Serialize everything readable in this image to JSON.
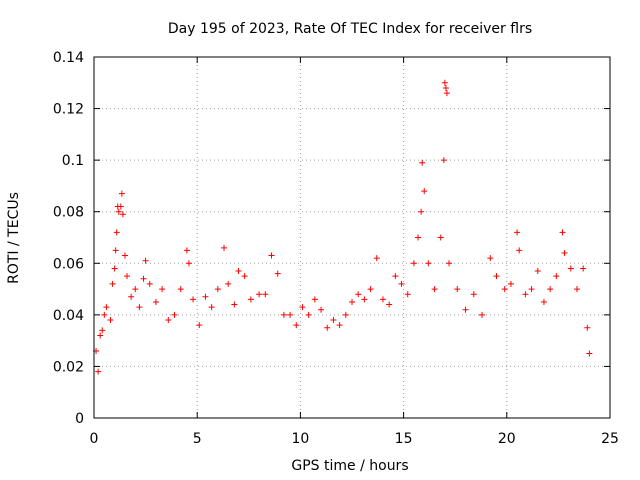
{
  "chart_data": {
    "type": "scatter",
    "title": "Day 195 of 2023, Rate Of TEC Index for receiver flrs",
    "xlabel": "GPS time / hours",
    "ylabel": "ROTI / TECUs",
    "xlim": [
      0,
      25
    ],
    "ylim": [
      0,
      0.14
    ],
    "xticks": [
      0,
      5,
      10,
      15,
      20,
      25
    ],
    "xtick_labels": [
      "0",
      "5",
      "10",
      "15",
      "20",
      "25"
    ],
    "yticks": [
      0,
      0.02,
      0.04,
      0.06,
      0.08,
      0.1,
      0.12,
      0.14
    ],
    "ytick_labels": [
      "0",
      "0.02",
      "0.04",
      "0.06",
      "0.08",
      "0.1",
      "0.12",
      "0.14"
    ],
    "grid": true,
    "marker": "+",
    "color": "#ff0000",
    "series": [
      {
        "name": "ROTI",
        "points": [
          [
            0.1,
            0.026
          ],
          [
            0.2,
            0.018
          ],
          [
            0.3,
            0.032
          ],
          [
            0.4,
            0.034
          ],
          [
            0.5,
            0.04
          ],
          [
            0.6,
            0.043
          ],
          [
            0.8,
            0.038
          ],
          [
            0.9,
            0.052
          ],
          [
            1.0,
            0.058
          ],
          [
            1.05,
            0.065
          ],
          [
            1.1,
            0.072
          ],
          [
            1.15,
            0.082
          ],
          [
            1.2,
            0.08
          ],
          [
            1.3,
            0.082
          ],
          [
            1.35,
            0.087
          ],
          [
            1.4,
            0.079
          ],
          [
            1.5,
            0.063
          ],
          [
            1.6,
            0.055
          ],
          [
            1.8,
            0.047
          ],
          [
            2.0,
            0.05
          ],
          [
            2.2,
            0.043
          ],
          [
            2.4,
            0.054
          ],
          [
            2.5,
            0.061
          ],
          [
            2.7,
            0.052
          ],
          [
            3.0,
            0.045
          ],
          [
            3.3,
            0.05
          ],
          [
            3.6,
            0.038
          ],
          [
            3.9,
            0.04
          ],
          [
            4.2,
            0.05
          ],
          [
            4.5,
            0.065
          ],
          [
            4.6,
            0.06
          ],
          [
            4.8,
            0.046
          ],
          [
            5.1,
            0.036
          ],
          [
            5.4,
            0.047
          ],
          [
            5.7,
            0.043
          ],
          [
            6.0,
            0.05
          ],
          [
            6.3,
            0.066
          ],
          [
            6.5,
            0.052
          ],
          [
            6.8,
            0.044
          ],
          [
            7.0,
            0.057
          ],
          [
            7.3,
            0.055
          ],
          [
            7.6,
            0.046
          ],
          [
            8.0,
            0.048
          ],
          [
            8.3,
            0.048
          ],
          [
            8.6,
            0.063
          ],
          [
            8.9,
            0.056
          ],
          [
            9.2,
            0.04
          ],
          [
            9.5,
            0.04
          ],
          [
            9.8,
            0.036
          ],
          [
            10.1,
            0.043
          ],
          [
            10.4,
            0.04
          ],
          [
            10.7,
            0.046
          ],
          [
            11.0,
            0.042
          ],
          [
            11.3,
            0.035
          ],
          [
            11.6,
            0.038
          ],
          [
            11.9,
            0.036
          ],
          [
            12.2,
            0.04
          ],
          [
            12.5,
            0.045
          ],
          [
            12.8,
            0.048
          ],
          [
            13.1,
            0.046
          ],
          [
            13.4,
            0.05
          ],
          [
            13.7,
            0.062
          ],
          [
            14.0,
            0.046
          ],
          [
            14.3,
            0.044
          ],
          [
            14.6,
            0.055
          ],
          [
            14.9,
            0.052
          ],
          [
            15.2,
            0.048
          ],
          [
            15.5,
            0.06
          ],
          [
            15.7,
            0.07
          ],
          [
            15.85,
            0.08
          ],
          [
            15.9,
            0.099
          ],
          [
            16.0,
            0.088
          ],
          [
            16.2,
            0.06
          ],
          [
            16.5,
            0.05
          ],
          [
            16.8,
            0.07
          ],
          [
            16.95,
            0.1
          ],
          [
            17.0,
            0.13
          ],
          [
            17.05,
            0.128
          ],
          [
            17.1,
            0.126
          ],
          [
            17.2,
            0.06
          ],
          [
            17.6,
            0.05
          ],
          [
            18.0,
            0.042
          ],
          [
            18.4,
            0.048
          ],
          [
            18.8,
            0.04
          ],
          [
            19.2,
            0.062
          ],
          [
            19.5,
            0.055
          ],
          [
            19.9,
            0.05
          ],
          [
            20.2,
            0.052
          ],
          [
            20.5,
            0.072
          ],
          [
            20.6,
            0.065
          ],
          [
            20.9,
            0.048
          ],
          [
            21.2,
            0.05
          ],
          [
            21.5,
            0.057
          ],
          [
            21.8,
            0.045
          ],
          [
            22.1,
            0.05
          ],
          [
            22.4,
            0.055
          ],
          [
            22.7,
            0.072
          ],
          [
            22.8,
            0.064
          ],
          [
            23.1,
            0.058
          ],
          [
            23.4,
            0.05
          ],
          [
            23.7,
            0.058
          ],
          [
            23.9,
            0.035
          ],
          [
            24.0,
            0.025
          ]
        ]
      }
    ]
  }
}
